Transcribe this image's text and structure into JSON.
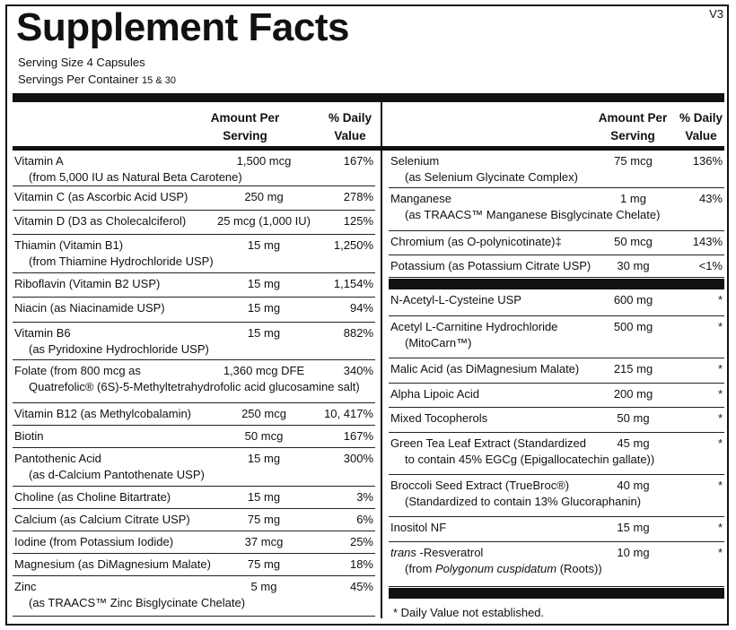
{
  "title": "Supplement Facts",
  "version": "V3",
  "serving_size": "Serving Size  4 Capsules",
  "servings_per_container": "Servings Per Container",
  "servings_per_container_value": "15 & 30",
  "headers": {
    "amount": [
      "Amount Per",
      "Serving"
    ],
    "dv": [
      "% Daily",
      "Value"
    ]
  },
  "left_rows": [
    {
      "name": "Vitamin A",
      "sub": "(from 5,000 IU as Natural Beta Carotene)",
      "amount": "1,500 mcg",
      "dv": "167%"
    },
    {
      "name": "Vitamin C (as Ascorbic Acid USP)",
      "amount": "250 mg",
      "dv": "278%"
    },
    {
      "name": "Vitamin D (D3 as Cholecalciferol)",
      "amount": "25 mcg (1,000 IU)",
      "dv": "125%"
    },
    {
      "name": "Thiamin (Vitamin B1)",
      "sub": "(from Thiamine Hydrochloride USP)",
      "amount": "15 mg",
      "dv": "1,250%"
    },
    {
      "name": "Riboflavin (Vitamin B2 USP)",
      "amount": "15 mg",
      "dv": "1,154%"
    },
    {
      "name": "Niacin (as Niacinamide USP)",
      "amount": "15 mg",
      "dv": "94%"
    },
    {
      "name": "Vitamin B6",
      "sub": "(as Pyridoxine Hydrochloride USP)",
      "amount": "15 mg",
      "dv": "882%"
    },
    {
      "name": "Folate (from 800 mcg as",
      "sub": "Quatrefolic® (6S)-5-Methyltetrahydrofolic acid glucosamine salt)",
      "amount": "1,360 mcg DFE",
      "dv": "340%"
    },
    {
      "name": "Vitamin B12 (as Methylcobalamin)",
      "amount": "250 mcg",
      "dv": "10, 417%"
    },
    {
      "name": "Biotin",
      "amount": "50 mcg",
      "dv": "167%"
    },
    {
      "name": "Pantothenic Acid",
      "sub": "(as d-Calcium Pantothenate USP)",
      "amount": "15 mg",
      "dv": "300%"
    },
    {
      "name": "Choline (as Choline Bitartrate)",
      "amount": "15 mg",
      "dv": "3%"
    },
    {
      "name": "Calcium (as Calcium Citrate USP)",
      "amount": "75 mg",
      "dv": "6%"
    },
    {
      "name": "Iodine (from Potassium Iodide)",
      "amount": "37 mcg",
      "dv": "25%"
    },
    {
      "name": "Magnesium (as DiMagnesium Malate)",
      "amount": "75 mg",
      "dv": "18%"
    },
    {
      "name": "Zinc",
      "sub": "(as TRAACS™ Zinc Bisglycinate Chelate)",
      "amount": "5 mg",
      "dv": "45%"
    }
  ],
  "right_rows": [
    {
      "name": "Selenium",
      "sub": "(as Selenium Glycinate Complex)",
      "amount": "75 mcg",
      "dv": "136%"
    },
    {
      "name": "Manganese",
      "sub": "(as TRAACS™ Manganese Bisglycinate Chelate)",
      "amount": "1 mg",
      "dv": "43%"
    },
    {
      "name": "Chromium (as O-polynicotinate)‡",
      "amount": "50 mcg",
      "dv": "143%"
    },
    {
      "name": "Potassium (as Potassium Citrate USP)",
      "amount": "30 mg",
      "dv": "<1%"
    }
  ],
  "right_rows2": [
    {
      "name": "N-Acetyl-L-Cysteine USP",
      "amount": "600 mg",
      "dv": "*"
    },
    {
      "name": "Acetyl L-Carnitine Hydrochloride",
      "sub": "(MitoCarn™)",
      "amount": "500 mg",
      "dv": "*"
    },
    {
      "name": "Malic Acid (as DiMagnesium Malate)",
      "amount": "215 mg",
      "dv": "*"
    },
    {
      "name": "Alpha Lipoic Acid",
      "amount": "200 mg",
      "dv": "*"
    },
    {
      "name": "Mixed Tocopherols",
      "amount": "50 mg",
      "dv": "*"
    },
    {
      "name": "Green Tea Leaf Extract (Standardized",
      "sub": "to contain 45% EGCg (Epigallocatechin gallate))",
      "amount": "45 mg",
      "dv": "*"
    },
    {
      "name": "Broccoli Seed Extract (TrueBroc®)",
      "sub": "(Standardized to contain 13% Glucoraphanin)",
      "amount": "40 mg",
      "dv": "*"
    },
    {
      "name": "Inositol NF",
      "amount": "15 mg",
      "dv": "*"
    },
    {
      "name": "trans -Resveratrol",
      "sub": "(from Polygonum cuspidatum (Roots))",
      "amount": "10 mg",
      "dv": "*"
    }
  ],
  "footnote": "*  Daily Value not established."
}
